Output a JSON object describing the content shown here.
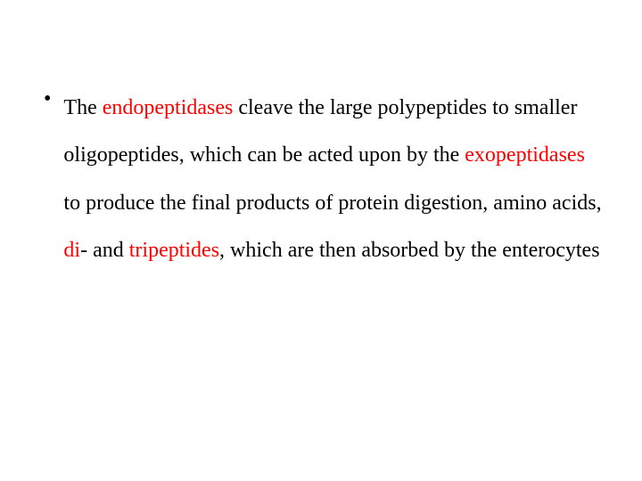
{
  "slide": {
    "bullet_marker": "•",
    "segments": {
      "s0": "The ",
      "s1": "endopeptidases",
      "s2": " cleave the large polypeptides to smaller oligopeptides, which can be acted upon by the ",
      "s3": "exopeptidases",
      "s4": " to produce the final products of protein digestion, amino acids, ",
      "s5": "di",
      "s6": "- and ",
      "s7": "tripeptides",
      "s8": ", which are then absorbed by the enterocytes"
    }
  },
  "colors": {
    "background": "#ffffff",
    "text": "#000000",
    "highlight": "#ff0000"
  },
  "typography": {
    "font_family": "Times New Roman",
    "font_size_pt": 18,
    "line_height": 2.22
  }
}
